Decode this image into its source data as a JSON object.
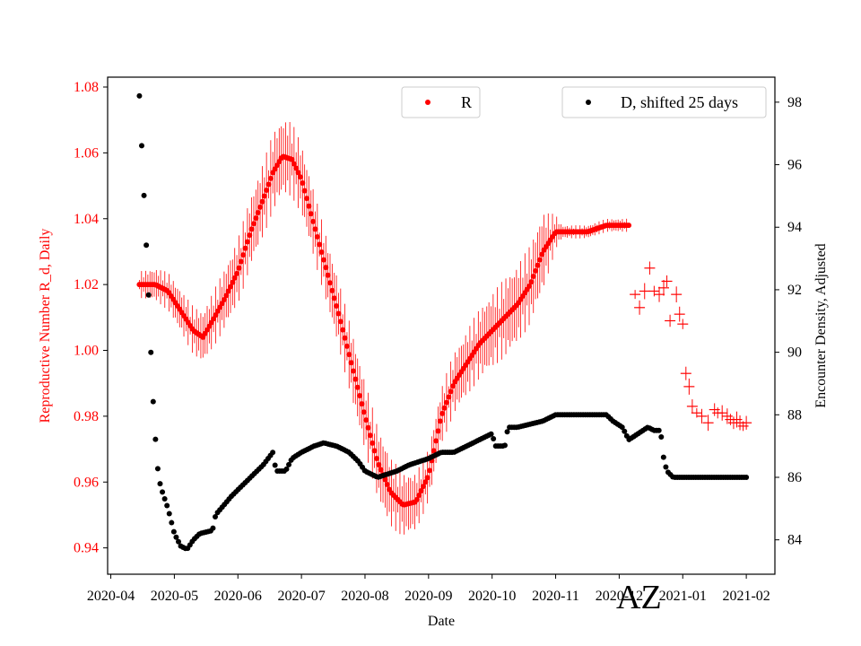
{
  "chart_data": {
    "type": "scatter",
    "title": "",
    "region_label": "AZ",
    "xlabel": "Date",
    "x_ticks": [
      "2020-04",
      "2020-05",
      "2020-06",
      "2020-07",
      "2020-08",
      "2020-09",
      "2020-10",
      "2020-11",
      "2020-12",
      "2021-01",
      "2021-02"
    ],
    "xlim_months": [
      -0.05,
      10.45
    ],
    "left_axis": {
      "label": "Reproductive Number R_d, Daily",
      "color": "#ff0000",
      "ylim": [
        0.932,
        1.083
      ],
      "ticks": [
        "0.94",
        "0.96",
        "0.98",
        "1.00",
        "1.02",
        "1.04",
        "1.06",
        "1.08"
      ]
    },
    "right_axis": {
      "label": "Encounter Density, Adjusted",
      "color": "#000000",
      "ylim": [
        82.9,
        98.8
      ],
      "ticks": [
        "84",
        "86",
        "88",
        "90",
        "92",
        "94",
        "96",
        "98"
      ]
    },
    "series": [
      {
        "name": "R",
        "axis": "left",
        "color": "#ff0000",
        "marker": "dot",
        "error_bars": true,
        "knots": [
          [
            0.45,
            1.02
          ],
          [
            0.7,
            1.02
          ],
          [
            0.9,
            1.018
          ],
          [
            1.1,
            1.012
          ],
          [
            1.3,
            1.006
          ],
          [
            1.45,
            1.004
          ],
          [
            1.6,
            1.009
          ],
          [
            1.8,
            1.016
          ],
          [
            2.0,
            1.024
          ],
          [
            2.2,
            1.036
          ],
          [
            2.4,
            1.046
          ],
          [
            2.55,
            1.054
          ],
          [
            2.7,
            1.059
          ],
          [
            2.85,
            1.058
          ],
          [
            3.0,
            1.052
          ],
          [
            3.2,
            1.038
          ],
          [
            3.4,
            1.024
          ],
          [
            3.6,
            1.01
          ],
          [
            3.8,
            0.995
          ],
          [
            4.0,
            0.98
          ],
          [
            4.2,
            0.966
          ],
          [
            4.4,
            0.957
          ],
          [
            4.6,
            0.953
          ],
          [
            4.8,
            0.954
          ],
          [
            5.0,
            0.962
          ],
          [
            5.2,
            0.98
          ],
          [
            5.4,
            0.99
          ],
          [
            5.6,
            0.996
          ],
          [
            5.8,
            1.002
          ],
          [
            6.0,
            1.006
          ],
          [
            6.2,
            1.01
          ],
          [
            6.4,
            1.014
          ],
          [
            6.6,
            1.02
          ],
          [
            6.8,
            1.03
          ],
          [
            7.0,
            1.036
          ],
          [
            7.2,
            1.036
          ],
          [
            7.5,
            1.036
          ],
          [
            7.8,
            1.038
          ],
          [
            8.15,
            1.038
          ]
        ],
        "x_start": 0.45,
        "x_end": 8.15,
        "count": 232,
        "error_half_widths": [
          [
            0.45,
            0.004
          ],
          [
            2.0,
            0.01
          ],
          [
            2.6,
            0.012
          ],
          [
            3.3,
            0.01
          ],
          [
            4.3,
            0.011
          ],
          [
            5.0,
            0.008
          ],
          [
            6.2,
            0.012
          ],
          [
            6.8,
            0.012
          ],
          [
            7.1,
            0.002
          ],
          [
            8.15,
            0.002
          ]
        ]
      },
      {
        "name": "R (sparse)",
        "axis": "left",
        "color": "#ff0000",
        "marker": "plus",
        "points": [
          [
            8.25,
            1.017
          ],
          [
            8.32,
            1.013
          ],
          [
            8.4,
            1.018
          ],
          [
            8.48,
            1.025
          ],
          [
            8.55,
            1.018
          ],
          [
            8.63,
            1.017
          ],
          [
            8.7,
            1.019
          ],
          [
            8.75,
            1.021
          ],
          [
            8.8,
            1.009
          ],
          [
            8.9,
            1.017
          ],
          [
            8.95,
            1.011
          ],
          [
            9.0,
            1.008
          ],
          [
            9.05,
            0.993
          ],
          [
            9.1,
            0.989
          ],
          [
            9.15,
            0.983
          ],
          [
            9.22,
            0.981
          ],
          [
            9.3,
            0.98
          ],
          [
            9.4,
            0.978
          ],
          [
            9.5,
            0.982
          ],
          [
            9.55,
            0.981
          ],
          [
            9.62,
            0.981
          ],
          [
            9.7,
            0.98
          ],
          [
            9.75,
            0.979
          ],
          [
            9.8,
            0.978
          ],
          [
            9.85,
            0.979
          ],
          [
            9.9,
            0.978
          ],
          [
            9.95,
            0.977
          ],
          [
            10.0,
            0.978
          ]
        ]
      },
      {
        "name": "D, shifted 25 days",
        "axis": "right",
        "color": "#000000",
        "marker": "dot",
        "knots": [
          [
            0.45,
            98.2
          ],
          [
            0.5,
            96.0
          ],
          [
            0.55,
            93.8
          ],
          [
            0.6,
            91.6
          ],
          [
            0.65,
            89.0
          ],
          [
            0.7,
            87.3
          ],
          [
            0.75,
            86.0
          ],
          [
            0.8,
            85.6
          ],
          [
            0.9,
            85.0
          ],
          [
            1.0,
            84.2
          ],
          [
            1.1,
            83.8
          ],
          [
            1.2,
            83.7
          ],
          [
            1.3,
            84.0
          ],
          [
            1.4,
            84.2
          ],
          [
            1.6,
            84.3
          ],
          [
            1.65,
            84.8
          ],
          [
            1.9,
            85.4
          ],
          [
            2.0,
            85.6
          ],
          [
            2.2,
            86.0
          ],
          [
            2.4,
            86.4
          ],
          [
            2.55,
            86.8
          ],
          [
            2.6,
            86.2
          ],
          [
            2.75,
            86.2
          ],
          [
            2.85,
            86.6
          ],
          [
            3.0,
            86.8
          ],
          [
            3.2,
            87.0
          ],
          [
            3.35,
            87.1
          ],
          [
            3.55,
            87.0
          ],
          [
            3.75,
            86.8
          ],
          [
            3.9,
            86.5
          ],
          [
            4.0,
            86.2
          ],
          [
            4.2,
            86.0
          ],
          [
            4.35,
            86.1
          ],
          [
            4.5,
            86.2
          ],
          [
            4.7,
            86.4
          ],
          [
            5.0,
            86.6
          ],
          [
            5.2,
            86.8
          ],
          [
            5.4,
            86.8
          ],
          [
            5.6,
            87.0
          ],
          [
            5.8,
            87.2
          ],
          [
            6.0,
            87.4
          ],
          [
            6.05,
            87.0
          ],
          [
            6.2,
            87.0
          ],
          [
            6.25,
            87.6
          ],
          [
            6.4,
            87.6
          ],
          [
            6.6,
            87.7
          ],
          [
            6.8,
            87.8
          ],
          [
            7.0,
            88.0
          ],
          [
            7.2,
            88.0
          ],
          [
            7.6,
            88.0
          ],
          [
            7.8,
            88.0
          ],
          [
            7.9,
            87.8
          ],
          [
            8.05,
            87.6
          ],
          [
            8.15,
            87.2
          ],
          [
            8.3,
            87.4
          ],
          [
            8.45,
            87.6
          ],
          [
            8.55,
            87.5
          ],
          [
            8.65,
            87.5
          ],
          [
            8.7,
            86.6
          ],
          [
            8.75,
            86.2
          ],
          [
            8.85,
            86.0
          ],
          [
            9.0,
            86.0
          ],
          [
            10.0,
            86.0
          ]
        ],
        "x_start": 0.45,
        "x_end": 10.0,
        "count": 265
      }
    ],
    "legend": [
      {
        "label": "R",
        "placement": "upper-center"
      },
      {
        "label": "D, shifted 25 days",
        "placement": "upper-right"
      }
    ]
  }
}
